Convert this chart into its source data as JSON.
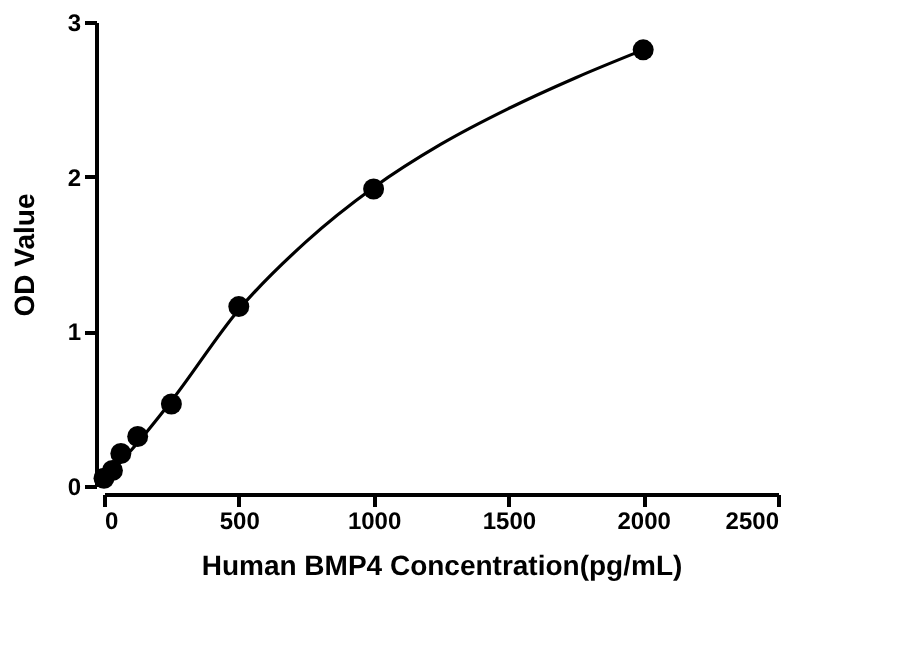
{
  "chart_data": {
    "type": "scatter",
    "xlabel": "Human BMP4 Concentration(pg/mL)",
    "ylabel": "OD Value",
    "xlim": [
      0,
      2500
    ],
    "xticks": [
      0,
      500,
      1000,
      1500,
      2000,
      2500
    ],
    "ylim": [
      0,
      3
    ],
    "yticks": [
      0,
      1,
      2,
      3
    ],
    "grid": false,
    "marker": "circle",
    "series": [
      {
        "color": "#000000",
        "x": [
          0,
          31.25,
          62.5,
          125,
          250,
          500,
          1000,
          2000
        ],
        "values": [
          0.05,
          0.1,
          0.21,
          0.32,
          0.53,
          1.16,
          1.92,
          2.82
        ]
      },
      {
        "type": "line",
        "color": "#000000",
        "line_style": "solid",
        "marker": "none",
        "x": [
          0,
          125,
          250,
          500,
          750,
          1000,
          1250,
          1500,
          1750,
          2000
        ],
        "values": [
          0.04,
          0.28,
          0.55,
          1.14,
          1.58,
          1.93,
          2.21,
          2.44,
          2.64,
          2.82
        ]
      }
    ]
  }
}
